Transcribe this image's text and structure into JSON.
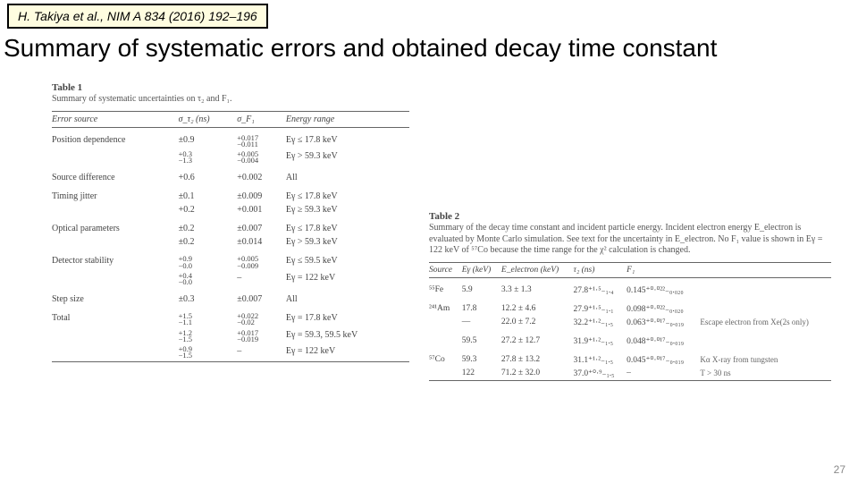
{
  "citation": "H. Takiya et al., NIM A 834 (2016) 192–196",
  "title": "Summary of systematic errors and obtained decay time constant",
  "slide_number": "27",
  "table1": {
    "label": "Table 1",
    "caption": "Summary of systematic uncertainties on τ₂ and F₁.",
    "headers": [
      "Error source",
      "σ_τ₂ (ns)",
      "σ_F₁",
      "Energy range"
    ],
    "rows": [
      {
        "src": "Position dependence",
        "c2": "±0.9",
        "c3_a": "+0.017",
        "c3_b": "−0.011",
        "c4": "Eγ ≤ 17.8 keV",
        "gap": true
      },
      {
        "src": "",
        "c2_a": "+0.3",
        "c2_b": "−1.3",
        "c3_a": "+0.005",
        "c3_b": "−0.004",
        "c4": "Eγ > 59.3 keV"
      },
      {
        "src": "Source difference",
        "c2": "+0.6",
        "c3": "+0.002",
        "c4": "All",
        "gap": true
      },
      {
        "src": "Timing jitter",
        "c2": "±0.1",
        "c3": "±0.009",
        "c4": "Eγ ≤ 17.8 keV",
        "gap": true
      },
      {
        "src": "",
        "c2": "+0.2",
        "c3": "+0.001",
        "c4": "Eγ ≥ 59.3 keV"
      },
      {
        "src": "Optical parameters",
        "c2": "±0.2",
        "c3": "±0.007",
        "c4": "Eγ ≤ 17.8 keV",
        "gap": true
      },
      {
        "src": "",
        "c2": "±0.2",
        "c3": "±0.014",
        "c4": "Eγ > 59.3 keV"
      },
      {
        "src": "Detector stability",
        "c2_a": "+0.9",
        "c2_b": "−0.0",
        "c3_a": "+0.005",
        "c3_b": "−0.009",
        "c4": "Eγ ≤ 59.5 keV",
        "gap": true
      },
      {
        "src": "",
        "c2_a": "+0.4",
        "c2_b": "−0.0",
        "c3": "–",
        "c4": "Eγ = 122 keV"
      },
      {
        "src": "Step size",
        "c2": "±0.3",
        "c3": "±0.007",
        "c4": "All",
        "gap": true
      },
      {
        "src": "Total",
        "c2_a": "+1.5",
        "c2_b": "−1.1",
        "c3_a": "+0.022",
        "c3_b": "−0.02",
        "c4": "Eγ = 17.8 keV",
        "gap": true
      },
      {
        "src": "",
        "c2_a": "+1.2",
        "c2_b": "−1.5",
        "c3_a": "+0.017",
        "c3_b": "−0.019",
        "c4": "Eγ = 59.3, 59.5 keV"
      },
      {
        "src": "",
        "c2_a": "+0.9",
        "c2_b": "−1.5",
        "c3": "–",
        "c4": "Eγ = 122 keV"
      }
    ]
  },
  "table2": {
    "label": "Table 2",
    "caption": "Summary of the decay time constant and incident particle energy. Incident electron energy E_electron is evaluated by Monte Carlo simulation. See text for the uncertainty in E_electron. No F₁ value is shown in Eγ = 122 keV of ⁵⁷Co because the time range for the χ² calculation is changed.",
    "headers": [
      "Source",
      "Eγ (keV)",
      "E_electron (keV)",
      "τ₂ (ns)",
      "F₁",
      ""
    ],
    "rows": [
      {
        "c1": "⁵⁵Fe",
        "c2": "5.9",
        "c3": "3.3 ± 1.3",
        "c4": "27.8⁺¹·⁵₋₁.₄",
        "c5": "0.145⁺⁰·⁰²²₋₀.₀₂₀",
        "c6": "",
        "gap": true
      },
      {
        "c1": "²⁴¹Am",
        "c2": "17.8",
        "c3": "12.2 ± 4.6",
        "c4": "27.9⁺¹·⁵₋₁.₁",
        "c5": "0.098⁺⁰·⁰²²₋₀.₀₂₀",
        "c6": "",
        "gap": true
      },
      {
        "c1": "",
        "c2": "—",
        "c3": "22.0 ± 7.2",
        "c4": "32.2⁺¹·²₋₁.₅",
        "c5": "0.063⁺⁰·⁰¹⁷₋₀.₀₁₉",
        "c6": "Escape electron from Xe(2s only)"
      },
      {
        "c1": "",
        "c2": "59.5",
        "c3": "27.2 ± 12.7",
        "c4": "31.9⁺¹·²₋₁.₅",
        "c5": "0.048⁺⁰·⁰¹⁷₋₀.₀₁₉",
        "c6": "",
        "gap": true
      },
      {
        "c1": "⁵⁷Co",
        "c2": "59.3",
        "c3": "27.8 ± 13.2",
        "c4": "31.1⁺¹·²₋₁.₅",
        "c5": "0.045⁺⁰·⁰¹⁷₋₀.₀₁₉",
        "c6": "Kα X-ray from tungsten",
        "gap": true
      },
      {
        "c1": "",
        "c2": "122",
        "c3": "71.2 ± 32.0",
        "c4": "37.0⁺⁰·⁹₋₁.₅",
        "c5": "–",
        "c6": "T > 30 ns"
      }
    ]
  }
}
